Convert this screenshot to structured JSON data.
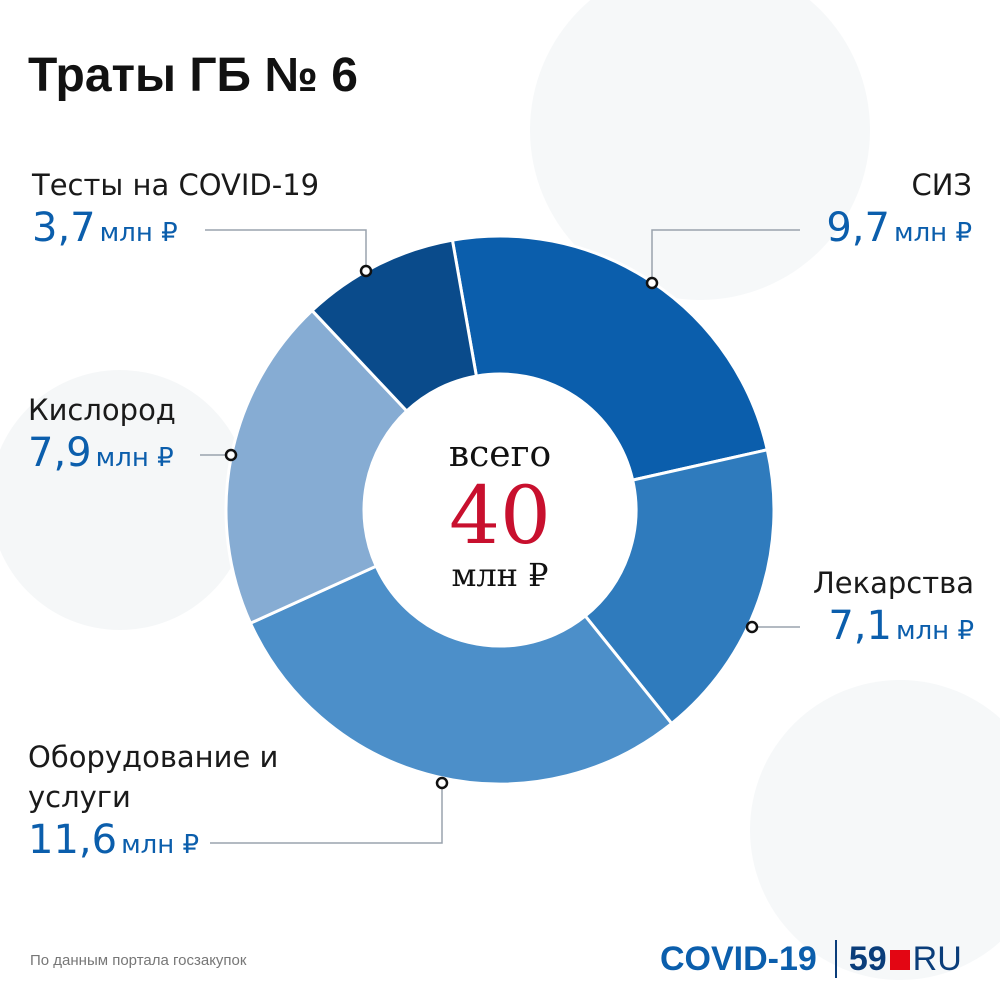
{
  "chart_data": {
    "type": "pie",
    "donut": true,
    "title": "Траты ГБ № 6",
    "categories": [
      "СИЗ",
      "Лекарства",
      "Оборудование и услуги",
      "Кислород",
      "Тесты на COVID-19"
    ],
    "values": [
      9.7,
      7.1,
      11.6,
      7.9,
      3.7
    ],
    "value_labels": [
      "9,7",
      "7,1",
      "11,6",
      "7,9",
      "3,7"
    ],
    "unit": "млн ₽",
    "colors": [
      "#0b5eac",
      "#2f7bbd",
      "#4c8fc9",
      "#86acd3",
      "#0a4b8b"
    ],
    "center_label": "всего",
    "total": 40,
    "total_unit": "млн ₽",
    "source": "По данным портала госзакупок"
  },
  "footer": {
    "logo": "COVID-19",
    "brand": "59",
    "brand_suffix": "RU"
  }
}
